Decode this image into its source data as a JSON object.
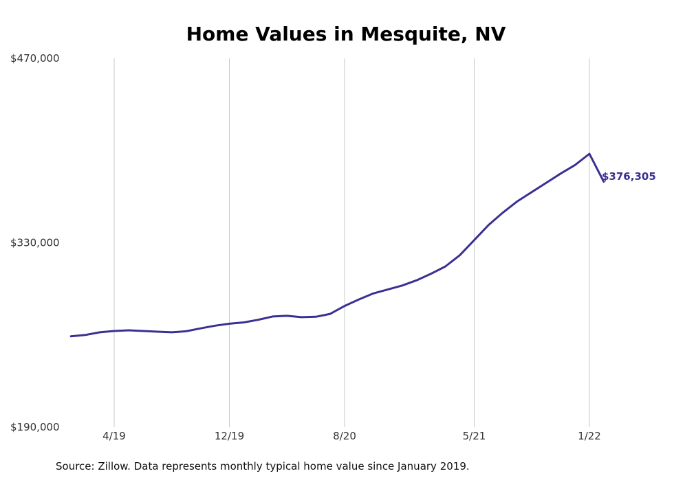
{
  "chart_data": {
    "type": "line",
    "title": "Home Values in Mesquite, NV",
    "xlabel": "",
    "ylabel": "",
    "ylim": [
      190000,
      470000
    ],
    "y_ticks": [
      "$470,000",
      "$330,000",
      "$190,000"
    ],
    "y_tick_values": [
      470000,
      330000,
      190000
    ],
    "x_ticks": [
      "4/19",
      "12/19",
      "8/20",
      "5/21",
      "1/22"
    ],
    "x_tick_dates": [
      "2019-04",
      "2019-12",
      "2020-08",
      "2021-05",
      "2022-01"
    ],
    "grid": "vertical",
    "series": [
      {
        "color": "#3a3092",
        "x": [
          "2019-01",
          "2019-02",
          "2019-03",
          "2019-04",
          "2019-05",
          "2019-06",
          "2019-07",
          "2019-08",
          "2019-09",
          "2019-10",
          "2019-11",
          "2019-12",
          "2020-01",
          "2020-02",
          "2020-03",
          "2020-04",
          "2020-05",
          "2020-06",
          "2020-07",
          "2020-08",
          "2020-09",
          "2020-10",
          "2020-11",
          "2020-12",
          "2021-01",
          "2021-02",
          "2021-03",
          "2021-04",
          "2021-05",
          "2021-06",
          "2021-07",
          "2021-08",
          "2021-09",
          "2021-10",
          "2021-11",
          "2021-12",
          "2022-01",
          "2022-02"
        ],
        "values": [
          259000,
          260000,
          262000,
          263000,
          263500,
          263000,
          262500,
          262000,
          262800,
          265000,
          267000,
          268500,
          269500,
          271500,
          274000,
          274500,
          273500,
          273800,
          276000,
          282000,
          287000,
          291500,
          294500,
          297500,
          301500,
          306500,
          312000,
          320500,
          332000,
          343500,
          353000,
          361500,
          368500,
          375500,
          382500,
          389000,
          397500,
          376305
        ]
      }
    ],
    "end_label": "$376,305",
    "source": "Source: Zillow. Data represents monthly typical home value since January 2019."
  }
}
